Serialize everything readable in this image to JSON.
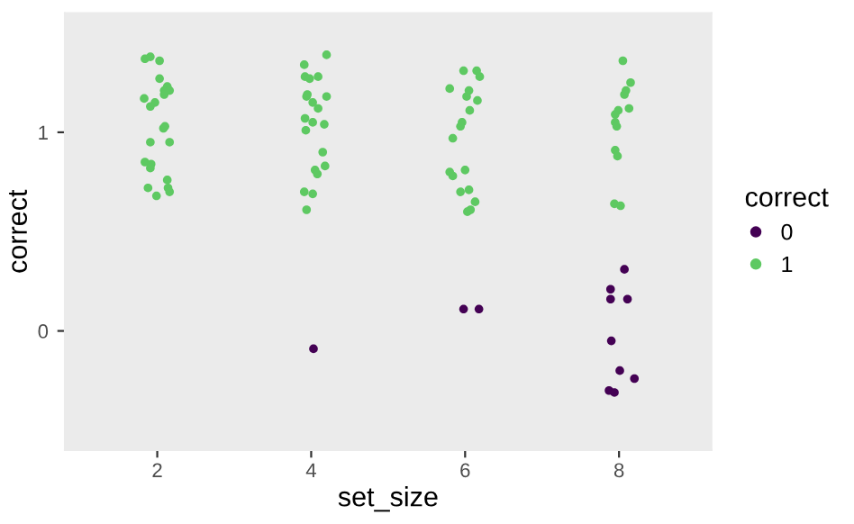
{
  "chart_data": {
    "type": "scatter",
    "xlabel": "set_size",
    "ylabel": "correct",
    "legend_title": "correct",
    "xlim": [
      0.8,
      9.2
    ],
    "xticks": [
      2,
      4,
      6,
      8
    ],
    "ylim": [
      -0.6,
      1.6
    ],
    "yticks": [
      0,
      1
    ],
    "grid": false,
    "legend": "right",
    "marker": "circle",
    "series": [
      {
        "name": "0",
        "color": "#440154",
        "x": [
          4.03,
          5.98,
          6.18,
          8.07,
          7.89,
          7.89,
          8.11,
          7.9,
          8.01,
          8.2,
          7.87,
          7.94
        ],
        "values": [
          -0.09,
          0.11,
          0.11,
          0.31,
          0.21,
          0.16,
          0.16,
          -0.05,
          -0.2,
          -0.24,
          -0.3,
          -0.31
        ]
      },
      {
        "name": "1",
        "color": "#5ec962",
        "x": [
          1.84,
          1.91,
          2.03,
          2.03,
          2.13,
          2.09,
          2.16,
          1.83,
          1.97,
          1.91,
          2.09,
          2.08,
          2.1,
          1.91,
          2.16,
          1.84,
          1.92,
          1.91,
          2.13,
          1.88,
          2.14,
          2.16,
          1.99,
          3.91,
          4.2,
          3.92,
          3.98,
          4.09,
          3.94,
          3.95,
          4.02,
          4.2,
          4.09,
          3.92,
          4.02,
          4.17,
          3.93,
          4.15,
          4.05,
          4.08,
          4.18,
          3.91,
          4.02,
          3.94,
          5.98,
          6.15,
          6.19,
          5.8,
          6.05,
          6.02,
          6.16,
          6.06,
          5.96,
          5.94,
          5.84,
          5.8,
          5.84,
          6.0,
          5.94,
          6.05,
          6.13,
          6.03,
          6.07,
          8.05,
          8.15,
          8.09,
          8.07,
          8.13,
          7.99,
          7.95,
          7.95,
          7.97,
          7.95,
          7.98,
          7.94,
          8.02
        ],
        "values": [
          1.37,
          1.38,
          1.36,
          1.27,
          1.23,
          1.21,
          1.21,
          1.17,
          1.15,
          1.13,
          1.19,
          1.02,
          1.03,
          0.95,
          0.95,
          0.85,
          0.84,
          0.82,
          0.76,
          0.72,
          0.72,
          0.7,
          0.68,
          1.34,
          1.39,
          1.28,
          1.27,
          1.28,
          1.18,
          1.19,
          1.15,
          1.18,
          1.12,
          1.07,
          1.05,
          1.04,
          1.01,
          0.9,
          0.81,
          0.79,
          0.83,
          0.7,
          0.69,
          0.61,
          1.31,
          1.31,
          1.28,
          1.22,
          1.21,
          1.18,
          1.16,
          1.11,
          1.05,
          1.03,
          0.97,
          0.8,
          0.78,
          0.81,
          0.7,
          0.71,
          0.65,
          0.6,
          0.61,
          1.36,
          1.25,
          1.21,
          1.19,
          1.12,
          1.11,
          1.09,
          1.05,
          1.03,
          0.91,
          0.88,
          0.64,
          0.63
        ]
      }
    ]
  }
}
